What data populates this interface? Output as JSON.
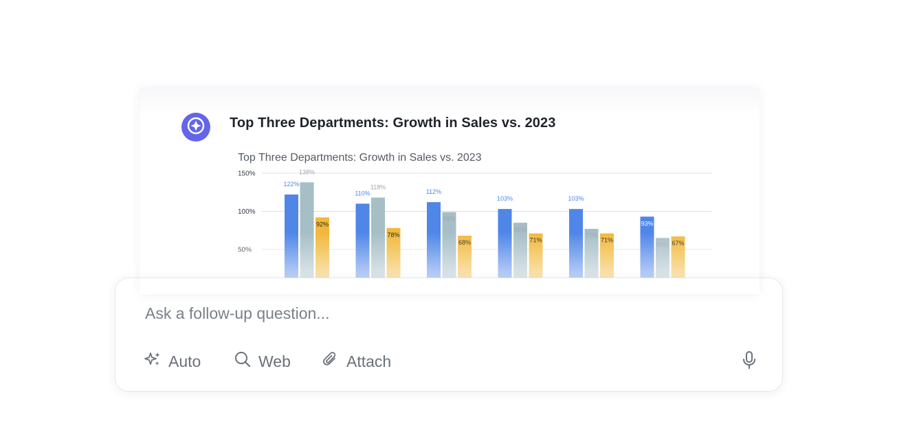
{
  "card": {
    "title": "Top Three Departments: Growth in Sales vs. 2023"
  },
  "chart_data": {
    "type": "bar",
    "title": "Top Three Departments: Growth in Sales vs. 2023",
    "ylim": [
      25,
      150
    ],
    "yticks": [
      "150%",
      "100%",
      "50%"
    ],
    "ytick_values": [
      150,
      100,
      50
    ],
    "grid": true,
    "categories": [
      "",
      "",
      "",
      "",
      "",
      ""
    ],
    "series": [
      {
        "color": "#4f86e8",
        "label_color": "#4f86e8",
        "values": [
          122,
          110,
          112,
          103,
          103,
          93
        ],
        "labels": [
          "122%",
          "110%",
          "112%",
          "103%",
          "103%",
          "93%"
        ]
      },
      {
        "color": "#a6bec6",
        "label_color": "#a0a6ad",
        "values": [
          138,
          118,
          99,
          85,
          77,
          65
        ],
        "labels": [
          "138%",
          "118%",
          "99%",
          "85%",
          "77%",
          "65%"
        ]
      },
      {
        "color": "#f2b83a",
        "label_color": "#222222",
        "values": [
          92,
          78,
          68,
          71,
          71,
          67
        ],
        "labels": [
          "92%",
          "78%",
          "68%",
          "71%",
          "71%",
          "67%"
        ]
      }
    ]
  },
  "composer": {
    "placeholder": "Ask a follow-up question...",
    "auto_label": "Auto",
    "web_label": "Web",
    "attach_label": "Attach"
  },
  "icons": {
    "avatar": "sparkle-badge-icon",
    "auto": "sparkles-icon",
    "web": "search-icon",
    "attach": "paperclip-icon",
    "mic": "microphone-icon"
  },
  "colors": {
    "avatar": "#6366e8",
    "accent_blue": "#4f86e8",
    "accent_gray": "#a6bec6",
    "accent_yellow": "#f2b83a"
  }
}
